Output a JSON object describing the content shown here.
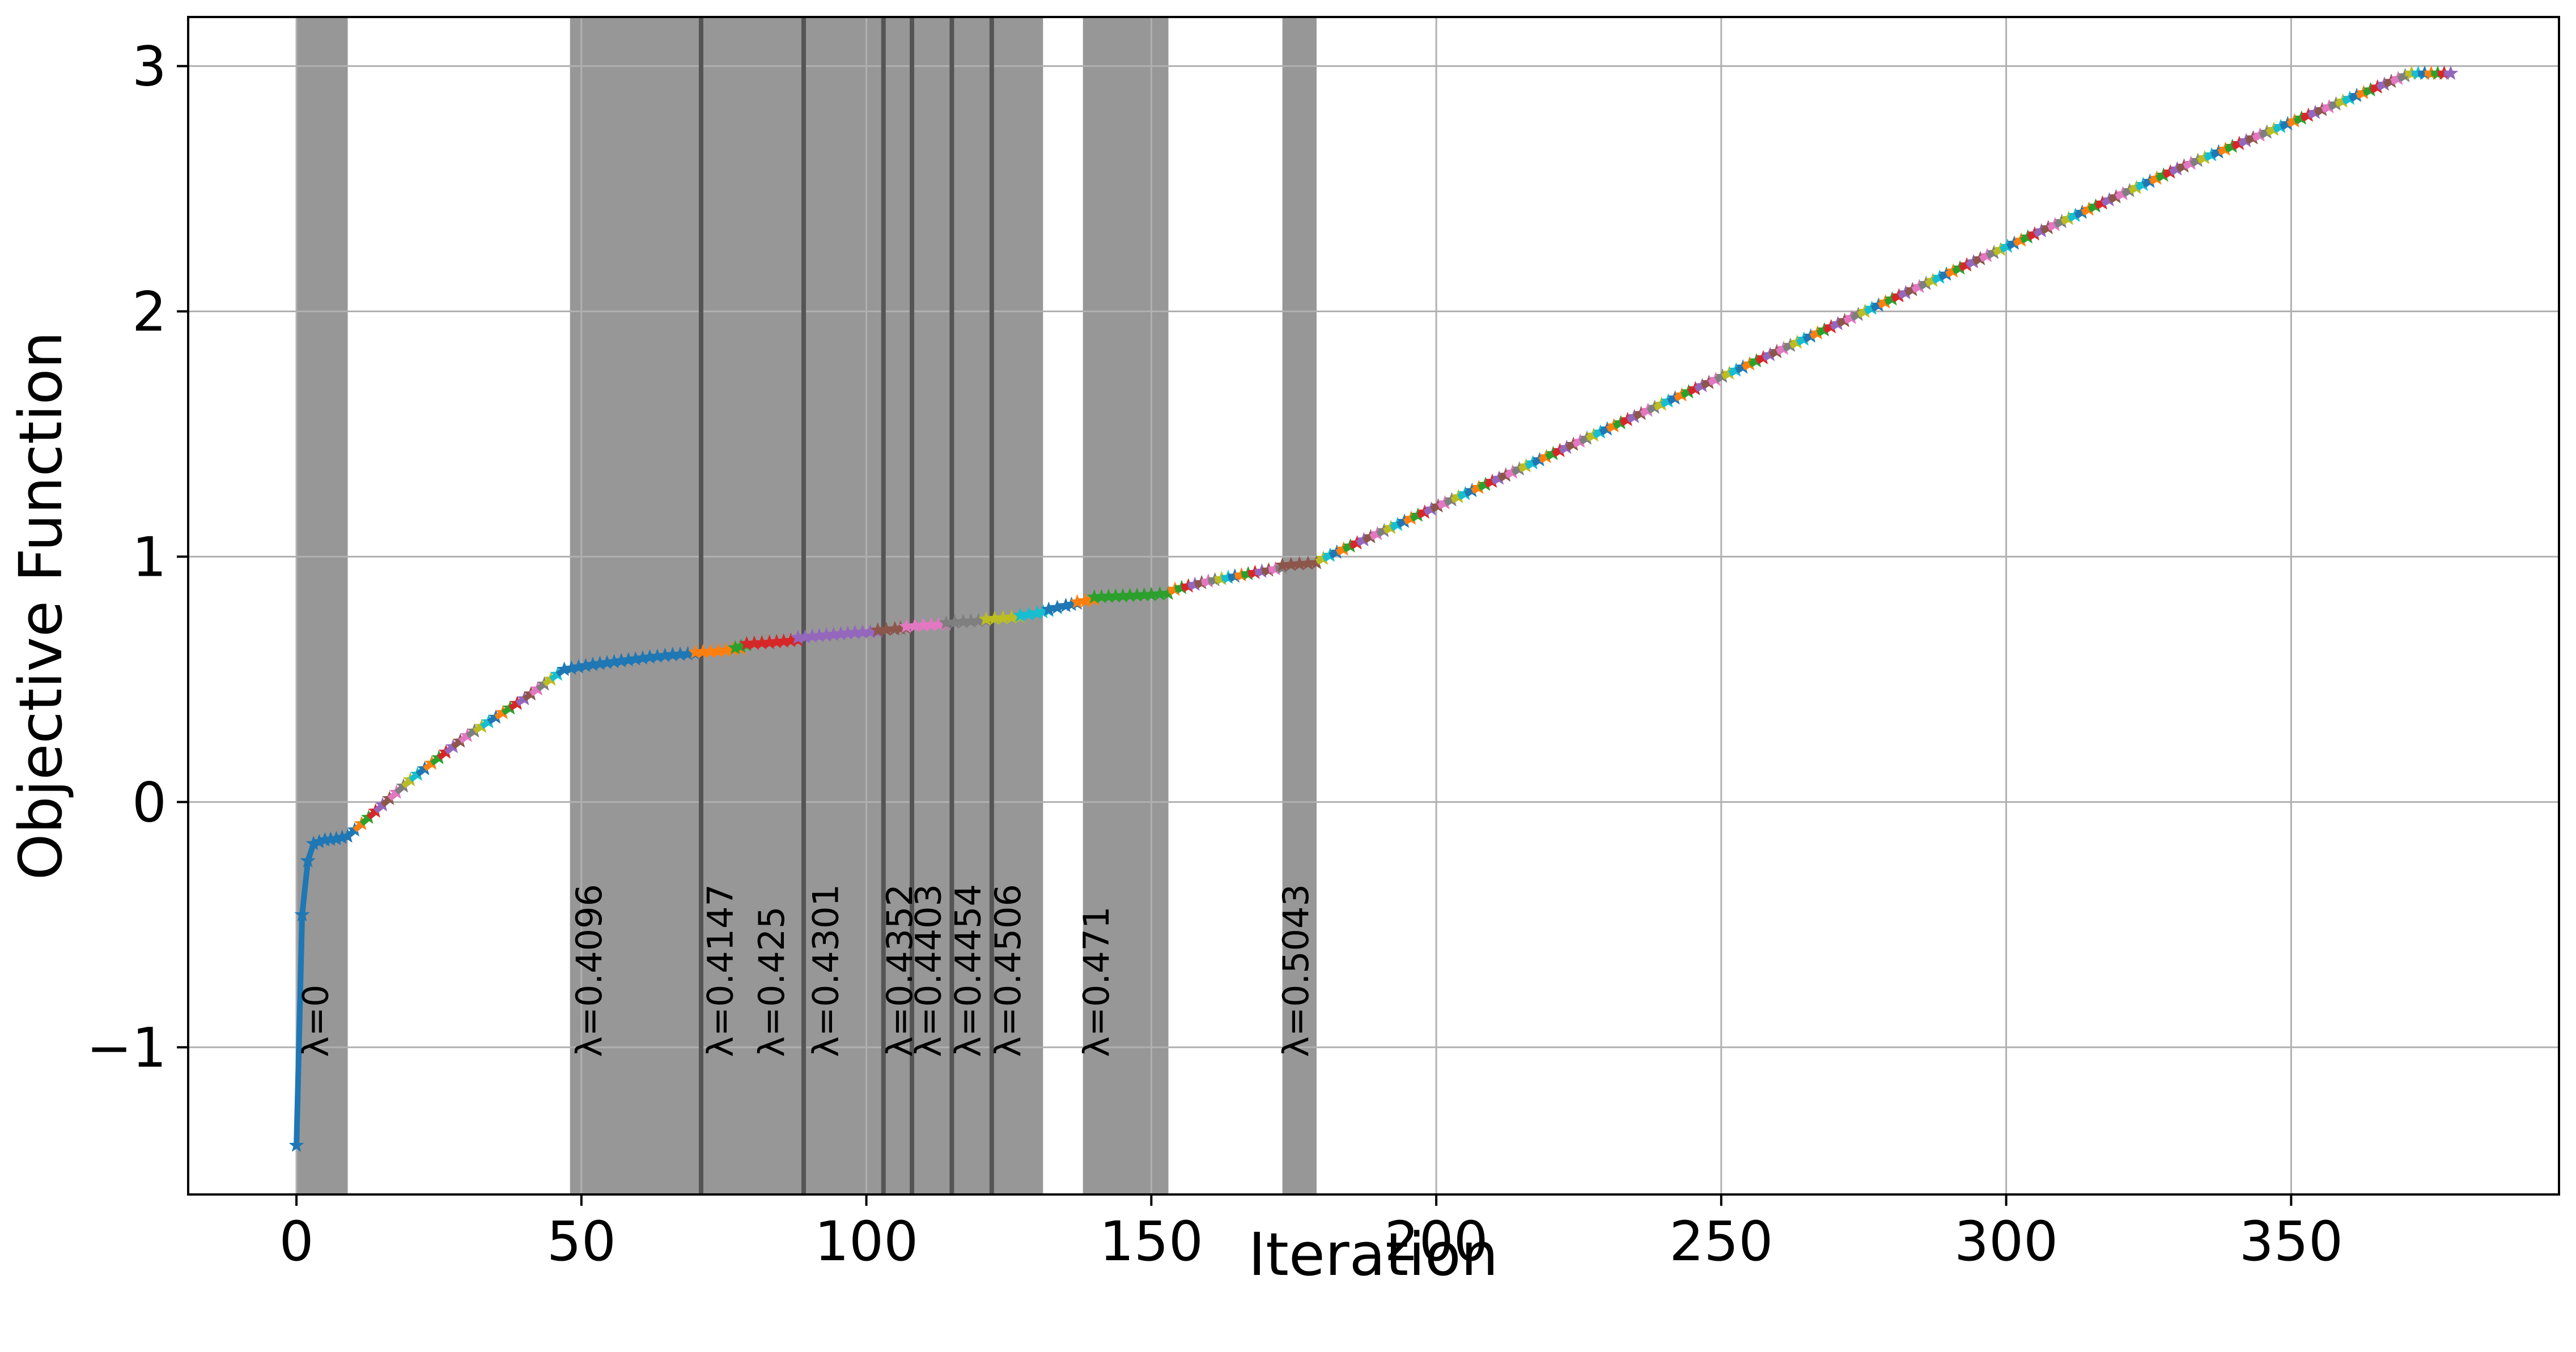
{
  "chart_data": {
    "type": "line",
    "title": "",
    "xlabel": "Iteration",
    "ylabel": "Objective Function",
    "xlim": [
      -19,
      397
    ],
    "ylim": [
      -1.6,
      3.2
    ],
    "x_ticks": [
      0,
      50,
      100,
      150,
      200,
      250,
      300,
      350
    ],
    "x_tick_labels": [
      "0",
      "50",
      "100",
      "150",
      "200",
      "250",
      "300",
      "350"
    ],
    "y_ticks": [
      -1,
      0,
      1,
      2,
      3
    ],
    "y_tick_labels": [
      "−1",
      "0",
      "1",
      "2",
      "3"
    ],
    "grid": true,
    "legend": "none",
    "marker": "star",
    "shaded_regions": [
      {
        "x_start": 0,
        "x_end": 9
      },
      {
        "x_start": 48,
        "x_end": 131
      },
      {
        "x_start": 138,
        "x_end": 153
      },
      {
        "x_start": 173,
        "x_end": 179
      }
    ],
    "vertical_lines": [
      71,
      89,
      103,
      108,
      115,
      122
    ],
    "annotations": [
      {
        "x": 5.5,
        "text": "λ=0"
      },
      {
        "x": 53.5,
        "text": "λ=0.4096"
      },
      {
        "x": 76.5,
        "text": "λ=0.4147"
      },
      {
        "x": 85.5,
        "text": "λ=0.425"
      },
      {
        "x": 95,
        "text": "λ=0.4301"
      },
      {
        "x": 108,
        "text": "λ=0.4352"
      },
      {
        "x": 113,
        "text": "λ=0.4403"
      },
      {
        "x": 120,
        "text": "λ=0.4454"
      },
      {
        "x": 127,
        "text": "λ=0.4506"
      },
      {
        "x": 142.5,
        "text": "λ=0.471"
      },
      {
        "x": 177.5,
        "text": "λ=0.5043"
      }
    ],
    "series": [
      {
        "color": "#1f77b4",
        "x": [
          0,
          1,
          2,
          3,
          5,
          7,
          9
        ],
        "y": [
          -1.4,
          -0.46,
          -0.24,
          -0.17,
          -0.155,
          -0.15,
          -0.14
        ]
      },
      {
        "color": "multi",
        "x": [
          9,
          20,
          30,
          40,
          47
        ],
        "y": [
          -0.14,
          0.09,
          0.27,
          0.42,
          0.54
        ]
      },
      {
        "color": "#1f77b4",
        "x": [
          47,
          52,
          57,
          62,
          66,
          70
        ],
        "y": [
          0.54,
          0.56,
          0.575,
          0.59,
          0.6,
          0.605
        ]
      },
      {
        "color": "#ff7f0e",
        "x": [
          70,
          74,
          78
        ],
        "y": [
          0.61,
          0.615,
          0.625
        ]
      },
      {
        "color": "#2ca02c",
        "x": [
          77,
          79
        ],
        "y": [
          0.628,
          0.64
        ]
      },
      {
        "color": "#d62728",
        "x": [
          79,
          83,
          88
        ],
        "y": [
          0.645,
          0.65,
          0.66
        ]
      },
      {
        "color": "#9467bd",
        "x": [
          88,
          93,
          98,
          102
        ],
        "y": [
          0.67,
          0.68,
          0.69,
          0.695
        ]
      },
      {
        "color": "#8c564b",
        "x": [
          102,
          105,
          107
        ],
        "y": [
          0.7,
          0.705,
          0.71
        ]
      },
      {
        "color": "#e377c2",
        "x": [
          107,
          110,
          114
        ],
        "y": [
          0.715,
          0.72,
          0.725
        ]
      },
      {
        "color": "#7f7f7f",
        "x": [
          114,
          117,
          121
        ],
        "y": [
          0.73,
          0.735,
          0.74
        ]
      },
      {
        "color": "#bcbd22",
        "x": [
          121,
          124,
          127
        ],
        "y": [
          0.745,
          0.75,
          0.755
        ]
      },
      {
        "color": "#17becf",
        "x": [
          127,
          130,
          132
        ],
        "y": [
          0.76,
          0.77,
          0.78
        ]
      },
      {
        "color": "#1f77b4",
        "x": [
          132,
          135,
          137
        ],
        "y": [
          0.785,
          0.8,
          0.81
        ]
      },
      {
        "color": "#ff7f0e",
        "x": [
          137,
          140
        ],
        "y": [
          0.815,
          0.825
        ]
      },
      {
        "color": "#2ca02c",
        "x": [
          140,
          145,
          150,
          153
        ],
        "y": [
          0.835,
          0.84,
          0.845,
          0.85
        ]
      },
      {
        "color": "multi",
        "x": [
          153,
          160,
          167,
          173
        ],
        "y": [
          0.86,
          0.9,
          0.93,
          0.955
        ]
      },
      {
        "color": "#8c564b",
        "x": [
          173,
          176,
          179
        ],
        "y": [
          0.965,
          0.97,
          0.975
        ]
      },
      {
        "color": "multi",
        "x": [
          179,
          230,
          280,
          330,
          370
        ],
        "y": [
          0.98,
          1.52,
          2.05,
          2.58,
          2.96
        ]
      },
      {
        "color": "multi",
        "x": [
          370,
          378
        ],
        "y": [
          2.97,
          2.97
        ]
      }
    ]
  }
}
